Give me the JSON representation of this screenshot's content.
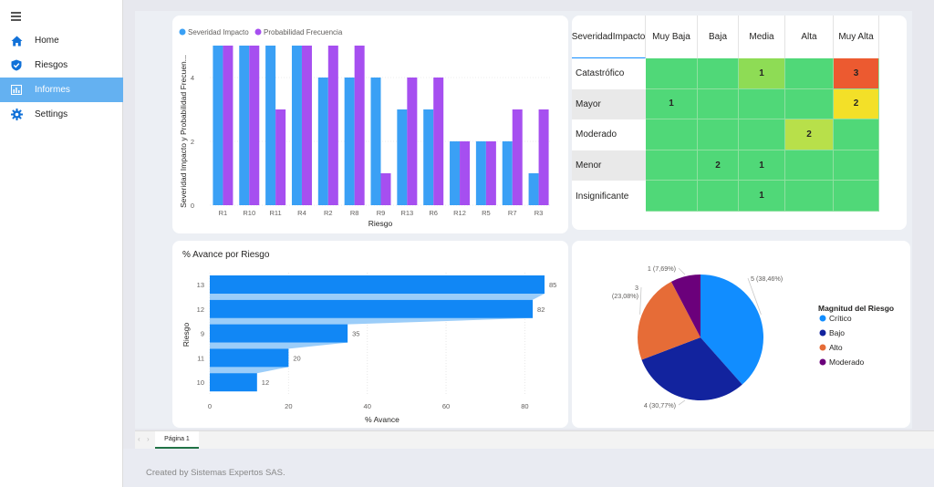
{
  "sidebar": {
    "items": [
      {
        "label": "Home",
        "icon": "home-icon"
      },
      {
        "label": "Riesgos",
        "icon": "shield-check-icon"
      },
      {
        "label": "Informes",
        "icon": "bar-chart-icon",
        "active": true
      },
      {
        "label": "Settings",
        "icon": "gear-icon"
      }
    ]
  },
  "colors": {
    "series1": "#3aa0f5",
    "series2": "#a64ff0",
    "hbar": "#1187f5",
    "active_nav": "#64b1f1",
    "matrix_green": "#50d878",
    "matrix_lightgreen": "#8edc55",
    "matrix_yellow": "#f3e028",
    "matrix_orange": "#ec5a30",
    "matrix_lime": "#b8e04a"
  },
  "chart_data": [
    {
      "type": "bar",
      "title": "",
      "xlabel": "Riesgo",
      "ylabel": "Severidad Impacto y Probabilidad Frecuen...",
      "categories": [
        "R1",
        "R10",
        "R11",
        "R4",
        "R2",
        "R8",
        "R9",
        "R13",
        "R6",
        "R12",
        "R5",
        "R7",
        "R3"
      ],
      "series": [
        {
          "name": "Severidad Impacto",
          "values": [
            5,
            5,
            5,
            5,
            4,
            4,
            4,
            3,
            3,
            2,
            2,
            2,
            1
          ]
        },
        {
          "name": "Probabilidad Frecuencia",
          "values": [
            5,
            5,
            3,
            5,
            5,
            5,
            1,
            4,
            4,
            2,
            2,
            3,
            3
          ]
        }
      ],
      "ylim": [
        0,
        5
      ],
      "yticks": [
        "0",
        "2",
        "4"
      ],
      "legend": "top-left"
    },
    {
      "type": "bar",
      "orientation": "horizontal",
      "title": "% Avance por Riesgo",
      "xlabel": "% Avance",
      "ylabel": "Riesgo",
      "categories": [
        "13",
        "12",
        "9",
        "11",
        "10"
      ],
      "values": [
        85,
        82,
        35,
        20,
        12
      ],
      "xlim": [
        0,
        85
      ],
      "xticks": [
        "0",
        "20",
        "40",
        "60",
        "80"
      ]
    },
    {
      "type": "pie",
      "legend_title": "Magnitud del Riesgo",
      "legend": "right",
      "slices": [
        {
          "name": "Crítico",
          "value": 5,
          "label": "5 (38,46%)",
          "color": "#118dff"
        },
        {
          "name": "Bajo",
          "value": 4,
          "label": "4 (30,77%)",
          "color": "#12239e"
        },
        {
          "name": "Alto",
          "value": 3,
          "label": "3\n(23,08%)",
          "color": "#e66c37"
        },
        {
          "name": "Moderado",
          "value": 1,
          "label": "1 (7,69%)",
          "color": "#6b007b"
        }
      ]
    },
    {
      "type": "heatmap",
      "corner_label": "SeveridadImpacto",
      "columns": [
        "Muy Baja",
        "Baja",
        "Media",
        "Alta",
        "Muy Alta"
      ],
      "rows": [
        {
          "label": "Catastrófico",
          "cells": [
            "",
            "",
            "1",
            "",
            "3"
          ],
          "colors": [
            "#50d878",
            "#50d878",
            "#8edc55",
            "#50d878",
            "#ec5a30"
          ]
        },
        {
          "label": "Mayor",
          "cells": [
            "1",
            "",
            "",
            "",
            "2"
          ],
          "colors": [
            "#50d878",
            "#50d878",
            "#50d878",
            "#50d878",
            "#f3e028"
          ]
        },
        {
          "label": "Moderado",
          "cells": [
            "",
            "",
            "",
            "2",
            ""
          ],
          "colors": [
            "#50d878",
            "#50d878",
            "#50d878",
            "#b8e04a",
            "#50d878"
          ]
        },
        {
          "label": "Menor",
          "cells": [
            "",
            "2",
            "1",
            "",
            ""
          ],
          "colors": [
            "#50d878",
            "#50d878",
            "#50d878",
            "#50d878",
            "#50d878"
          ]
        },
        {
          "label": "Insignificante",
          "cells": [
            "",
            "",
            "1",
            "",
            ""
          ],
          "colors": [
            "#50d878",
            "#50d878",
            "#50d878",
            "#50d878",
            "#50d878"
          ]
        }
      ]
    }
  ],
  "pages": {
    "tab_label": "Página 1",
    "prev": "‹",
    "next": "›"
  },
  "footer": {
    "text": "Created by Sistemas Expertos SAS."
  }
}
